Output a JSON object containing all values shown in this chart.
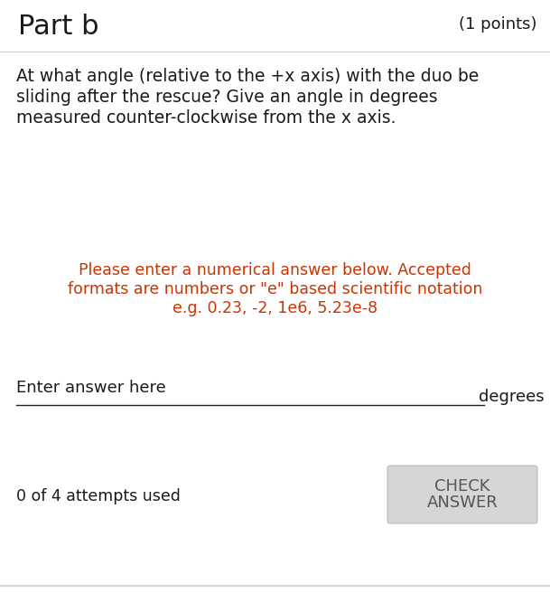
{
  "title": "Part b",
  "points": "(1 points)",
  "question_line1": "At what angle (relative to the +x axis) with the duo be",
  "question_line2": "sliding after the rescue? Give an angle in degrees",
  "question_line3": "measured counter-clockwise from the x axis.",
  "hint_line1": "Please enter a numerical answer below. Accepted",
  "hint_line2": "formats are numbers or \"e\" based scientific notation",
  "hint_line3": "e.g. 0.23, -2, 1e6, 5.23e-8",
  "input_label": "Enter answer here",
  "input_unit": "degrees",
  "attempts": "0 of 4 attempts used",
  "button_line1": "CHECK",
  "button_line2": "ANSWER",
  "bg_color": "#ffffff",
  "title_color": "#1a1a1a",
  "text_color": "#1a1a1a",
  "hint_color": "#cc3300",
  "button_bg": "#d6d6d6",
  "button_text_color": "#555555",
  "title_fontsize": 22,
  "points_fontsize": 13,
  "question_fontsize": 13.5,
  "hint_fontsize": 12.5,
  "input_fontsize": 13,
  "attempts_fontsize": 12.5,
  "button_fontsize": 13
}
